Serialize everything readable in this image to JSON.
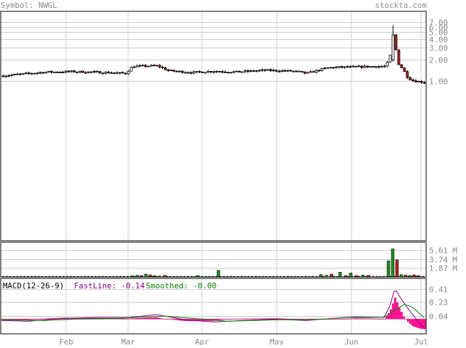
{
  "header": {
    "symbol_prefix": "Symbol:",
    "symbol": "NWGL",
    "site": "stockta.com"
  },
  "colors": {
    "grid": "#cccccc",
    "frame": "#000000",
    "axis_text": "#888888",
    "up_volume": "#228b22",
    "down_volume": "#b22222",
    "down_candle": "#b22222",
    "macd_fast": "#800080",
    "macd_smooth": "#008000",
    "macd_hist": "#ff1493"
  },
  "chart_data": [
    {
      "type": "candlestick",
      "title": "",
      "y_scale": "log",
      "y_ticks": [
        {
          "label": "7.00",
          "value": 7.0
        },
        {
          "label": "6.00",
          "value": 6.0
        },
        {
          "label": "5.00",
          "value": 5.0
        },
        {
          "label": "4.00",
          "value": 4.0
        },
        {
          "label": "3.00",
          "value": 3.0
        },
        {
          "label": "2.00",
          "value": 2.0
        },
        {
          "label": "1.00",
          "value": 1.0
        }
      ],
      "x_ticks": [
        "Feb",
        "Mar",
        "Apr",
        "May",
        "Jun",
        "Jul"
      ],
      "ylim": [
        0.005,
        10
      ],
      "grid": true
    },
    {
      "type": "bar",
      "title": "",
      "y_ticks": [
        {
          "label": "5.61 M",
          "value": 5.61
        },
        {
          "label": "3.74 M",
          "value": 3.74
        },
        {
          "label": "1.87 M",
          "value": 1.87
        }
      ],
      "ylim": [
        0,
        7.3
      ],
      "grid": true,
      "bars": [
        {
          "x": 186,
          "v": 0.25,
          "c": "up"
        },
        {
          "x": 193,
          "v": 0.35,
          "c": "up"
        },
        {
          "x": 199,
          "v": 0.3,
          "c": "down"
        },
        {
          "x": 205,
          "v": 0.6,
          "c": "up"
        },
        {
          "x": 211,
          "v": 0.45,
          "c": "down"
        },
        {
          "x": 217,
          "v": 0.3,
          "c": "up"
        },
        {
          "x": 224,
          "v": 0.2,
          "c": "down"
        },
        {
          "x": 232,
          "v": 0.35,
          "c": "down"
        },
        {
          "x": 278,
          "v": 0.3,
          "c": "up"
        },
        {
          "x": 307,
          "v": 1.4,
          "c": "up"
        },
        {
          "x": 451,
          "v": 0.5,
          "c": "up"
        },
        {
          "x": 459,
          "v": 0.35,
          "c": "up"
        },
        {
          "x": 466,
          "v": 0.6,
          "c": "down"
        },
        {
          "x": 478,
          "v": 1.0,
          "c": "up"
        },
        {
          "x": 486,
          "v": 0.3,
          "c": "down"
        },
        {
          "x": 493,
          "v": 0.85,
          "c": "up"
        },
        {
          "x": 501,
          "v": 0.3,
          "c": "down"
        },
        {
          "x": 510,
          "v": 0.4,
          "c": "up"
        },
        {
          "x": 518,
          "v": 0.35,
          "c": "down"
        },
        {
          "x": 546,
          "v": 3.4,
          "c": "up"
        },
        {
          "x": 552,
          "v": 5.9,
          "c": "up"
        },
        {
          "x": 558,
          "v": 3.6,
          "c": "down"
        },
        {
          "x": 564,
          "v": 0.5,
          "c": "up"
        },
        {
          "x": 570,
          "v": 0.4,
          "c": "down"
        },
        {
          "x": 576,
          "v": 0.3,
          "c": "up"
        },
        {
          "x": 582,
          "v": 0.45,
          "c": "down"
        },
        {
          "x": 588,
          "v": 0.3,
          "c": "down"
        }
      ]
    },
    {
      "type": "line",
      "title": "MACD(12-26-9)",
      "series": [
        {
          "name": "FastLine:",
          "value_label": "-0.14"
        },
        {
          "name": "Smoothed:",
          "value_label": "-0.00"
        }
      ],
      "y_ticks": [
        {
          "label": "0.41",
          "value": 0.41
        },
        {
          "label": "0.23",
          "value": 0.23
        },
        {
          "label": "0.04",
          "value": 0.04
        }
      ],
      "ylim": [
        -0.2,
        0.55
      ],
      "grid": true
    }
  ]
}
